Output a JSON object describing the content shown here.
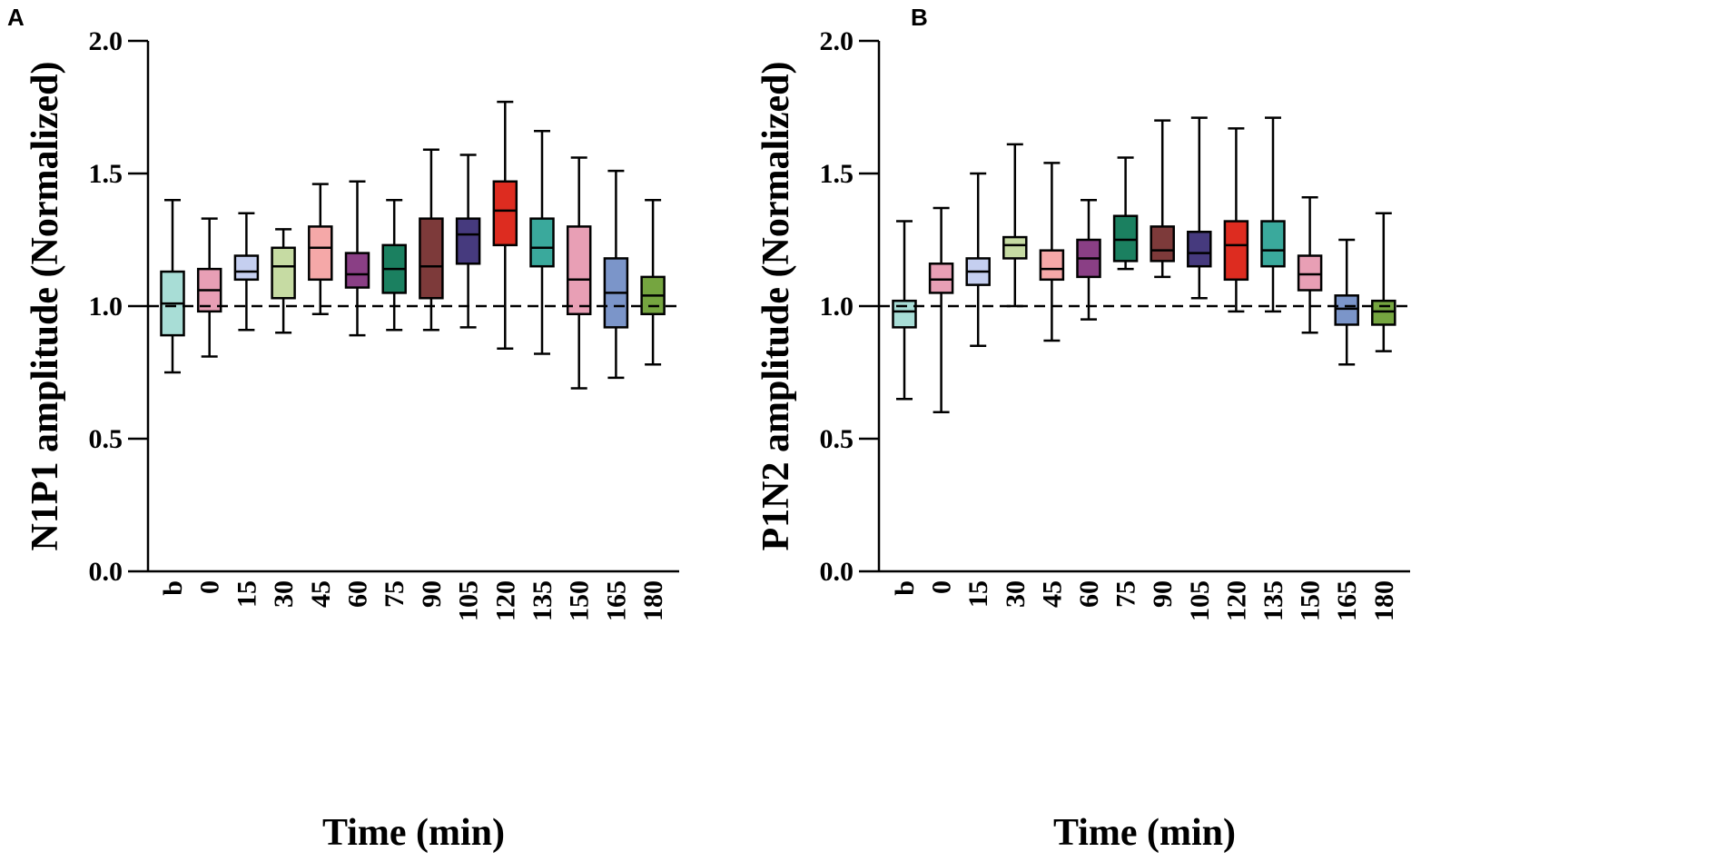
{
  "colors": {
    "b": "#a8ddd6",
    "0": "#e89fb5",
    "15": "#c5cff0",
    "30": "#c6dba3",
    "45": "#f5a8a8",
    "60": "#8a3f85",
    "75": "#1b8060",
    "90": "#7d3a3a",
    "105": "#463a7e",
    "120": "#dd2c20",
    "135": "#3aa99c",
    "150": "#e89fb5",
    "165": "#7b95c9",
    "180": "#75a540"
  },
  "chart_data": [
    {
      "type": "box",
      "panel": "A",
      "ylabel": "N1P1 amplitude (Normalized)",
      "xlabel": "Time (min)",
      "ylim": [
        0,
        2
      ],
      "yticks": [
        "0.0",
        "0.5",
        "1.0",
        "1.5",
        "2.0"
      ],
      "reference_line": 1.0,
      "categories": [
        "b",
        "0",
        "15",
        "30",
        "45",
        "60",
        "75",
        "90",
        "105",
        "120",
        "135",
        "150",
        "165",
        "180"
      ],
      "boxes": [
        {
          "min": 0.75,
          "q1": 0.89,
          "median": 1.01,
          "q3": 1.13,
          "max": 1.4
        },
        {
          "min": 0.81,
          "q1": 0.98,
          "median": 1.06,
          "q3": 1.14,
          "max": 1.33
        },
        {
          "min": 0.91,
          "q1": 1.1,
          "median": 1.13,
          "q3": 1.19,
          "max": 1.35
        },
        {
          "min": 0.9,
          "q1": 1.03,
          "median": 1.15,
          "q3": 1.22,
          "max": 1.29
        },
        {
          "min": 0.97,
          "q1": 1.1,
          "median": 1.22,
          "q3": 1.3,
          "max": 1.46
        },
        {
          "min": 0.89,
          "q1": 1.07,
          "median": 1.12,
          "q3": 1.2,
          "max": 1.47
        },
        {
          "min": 0.91,
          "q1": 1.05,
          "median": 1.14,
          "q3": 1.23,
          "max": 1.4
        },
        {
          "min": 0.91,
          "q1": 1.03,
          "median": 1.15,
          "q3": 1.33,
          "max": 1.59
        },
        {
          "min": 0.92,
          "q1": 1.16,
          "median": 1.27,
          "q3": 1.33,
          "max": 1.57
        },
        {
          "min": 0.84,
          "q1": 1.23,
          "median": 1.36,
          "q3": 1.47,
          "max": 1.77
        },
        {
          "min": 0.82,
          "q1": 1.15,
          "median": 1.22,
          "q3": 1.33,
          "max": 1.66
        },
        {
          "min": 0.69,
          "q1": 0.97,
          "median": 1.1,
          "q3": 1.3,
          "max": 1.56
        },
        {
          "min": 0.73,
          "q1": 0.92,
          "median": 1.05,
          "q3": 1.18,
          "max": 1.51
        },
        {
          "min": 0.78,
          "q1": 0.97,
          "median": 1.04,
          "q3": 1.11,
          "max": 1.4
        }
      ]
    },
    {
      "type": "box",
      "panel": "B",
      "ylabel": "P1N2 amplitude (Normalized)",
      "xlabel": "Time (min)",
      "ylim": [
        0,
        2
      ],
      "yticks": [
        "0.0",
        "0.5",
        "1.0",
        "1.5",
        "2.0"
      ],
      "reference_line": 1.0,
      "categories": [
        "b",
        "0",
        "15",
        "30",
        "45",
        "60",
        "75",
        "90",
        "105",
        "120",
        "135",
        "150",
        "165",
        "180"
      ],
      "boxes": [
        {
          "min": 0.65,
          "q1": 0.92,
          "median": 0.98,
          "q3": 1.02,
          "max": 1.32
        },
        {
          "min": 0.6,
          "q1": 1.05,
          "median": 1.1,
          "q3": 1.16,
          "max": 1.37
        },
        {
          "min": 0.85,
          "q1": 1.08,
          "median": 1.13,
          "q3": 1.18,
          "max": 1.5
        },
        {
          "min": 1.0,
          "q1": 1.18,
          "median": 1.23,
          "q3": 1.26,
          "max": 1.61
        },
        {
          "min": 0.87,
          "q1": 1.1,
          "median": 1.14,
          "q3": 1.21,
          "max": 1.54
        },
        {
          "min": 0.95,
          "q1": 1.11,
          "median": 1.18,
          "q3": 1.25,
          "max": 1.4
        },
        {
          "min": 1.14,
          "q1": 1.17,
          "median": 1.25,
          "q3": 1.34,
          "max": 1.56
        },
        {
          "min": 1.11,
          "q1": 1.17,
          "median": 1.21,
          "q3": 1.3,
          "max": 1.7
        },
        {
          "min": 1.03,
          "q1": 1.15,
          "median": 1.2,
          "q3": 1.28,
          "max": 1.71
        },
        {
          "min": 0.98,
          "q1": 1.1,
          "median": 1.23,
          "q3": 1.32,
          "max": 1.67
        },
        {
          "min": 0.98,
          "q1": 1.15,
          "median": 1.21,
          "q3": 1.32,
          "max": 1.71
        },
        {
          "min": 0.9,
          "q1": 1.06,
          "median": 1.12,
          "q3": 1.19,
          "max": 1.41
        },
        {
          "min": 0.78,
          "q1": 0.93,
          "median": 0.99,
          "q3": 1.04,
          "max": 1.25
        },
        {
          "min": 0.83,
          "q1": 0.93,
          "median": 0.98,
          "q3": 1.02,
          "max": 1.35
        }
      ]
    }
  ]
}
